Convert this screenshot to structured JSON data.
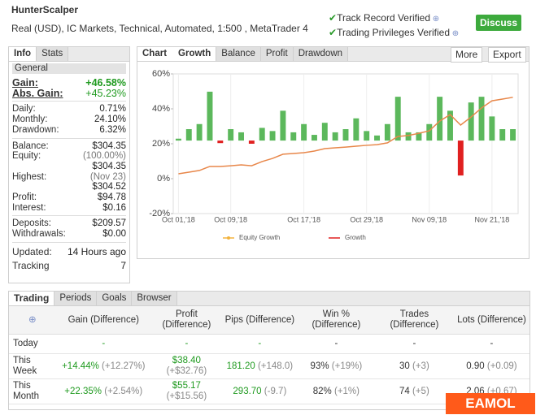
{
  "header": {
    "title": "HunterScalper",
    "subtitle": "Real (USD), IC Markets, Technical, Automated, 1:500 , MetaTrader 4",
    "badges": [
      "Track Record Verified",
      "Trading Privileges Verified"
    ],
    "button": "Discuss"
  },
  "info": {
    "tabs": [
      "Info",
      "Stats"
    ],
    "section": "General",
    "groups": [
      [
        {
          "label": "Gain:",
          "value": "+46.58%"
        },
        {
          "label": "Abs. Gain:",
          "value": "+45.23%"
        }
      ],
      [
        {
          "label": "Daily:",
          "value": "0.71%"
        },
        {
          "label": "Monthly:",
          "value": "24.10%"
        },
        {
          "label": "Drawdown:",
          "value": "6.32%"
        }
      ],
      [
        {
          "label": "Balance:",
          "value": "$304.35"
        },
        {
          "label": "Equity:",
          "note": "(100.00%)",
          "value": "$304.35"
        },
        {
          "label": "Highest:",
          "note": "(Nov 23)",
          "value": "$304.52"
        },
        {
          "label": "Profit:",
          "value": "$94.78"
        },
        {
          "label": "Interest:",
          "value": "$0.16"
        }
      ],
      [
        {
          "label": "Deposits:",
          "value": "$209.57"
        },
        {
          "label": "Withdrawals:",
          "value": "$0.00"
        }
      ]
    ],
    "footer": [
      {
        "label": "Updated:",
        "value": "14 Hours ago"
      },
      {
        "label": "Tracking",
        "value": "7"
      }
    ]
  },
  "chart_tabs": [
    "Chart",
    "Growth",
    "Balance",
    "Profit",
    "Drawdown"
  ],
  "chart_buttons": [
    "More",
    "Export"
  ],
  "chart_data": {
    "type": "combo",
    "categories": [
      "Oct 01,'18",
      null,
      null,
      null,
      null,
      "Oct 09,'18",
      null,
      null,
      null,
      null,
      null,
      null,
      "Oct 17,'18",
      null,
      null,
      null,
      null,
      null,
      "Oct 29,'18",
      null,
      null,
      null,
      null,
      null,
      "Nov 09,'18",
      null,
      null,
      null,
      null,
      null,
      "Nov 21,'18",
      null,
      null
    ],
    "ylim": [
      -20,
      60
    ],
    "yticks": [
      {
        "value": 60,
        "label": "60%"
      },
      {
        "value": 40,
        "label": "40%"
      },
      {
        "value": 20,
        "label": "20%"
      },
      {
        "value": 0,
        "label": "0%"
      },
      {
        "value": -20,
        "label": "-20%"
      }
    ],
    "y2lim": [
      -11.5,
      10.5
    ],
    "grid": true,
    "series": [
      {
        "name": "Growth",
        "type": "bar",
        "axis": "y2",
        "color": "#5cb85c",
        "negative_color": "#e02020",
        "values": [
          0.3,
          1.8,
          2.6,
          7.7,
          -0.4,
          1.8,
          1.3,
          -0.5,
          2.0,
          1.5,
          4.7,
          1.3,
          2.6,
          0.9,
          2.8,
          1.3,
          1.8,
          3.5,
          1.5,
          0.8,
          2.6,
          6.9,
          1.3,
          1.3,
          2.6,
          6.9,
          4.7,
          -5.5,
          6.0,
          6.9,
          3.8,
          1.8,
          1.8
        ]
      },
      {
        "name": "Equity Growth",
        "type": "line",
        "color": "#e8874a",
        "legend_color": "#f2b33d",
        "values": [
          2.8,
          3.7,
          4.7,
          7.0,
          7.0,
          7.4,
          7.9,
          7.4,
          9.8,
          11.6,
          14.0,
          14.4,
          14.9,
          15.8,
          17.2,
          17.7,
          18.1,
          18.6,
          19.1,
          19.5,
          20.5,
          24.2,
          24.7,
          26.0,
          27.4,
          33.0,
          36.7,
          30.7,
          35.3,
          40.5,
          44.6,
          45.6,
          46.6
        ]
      }
    ],
    "legend": [
      1,
      0
    ]
  },
  "periods": {
    "tabs": [
      "Trading",
      "Periods",
      "Goals",
      "Browser"
    ],
    "columns": [
      "Gain (Difference)",
      "Profit (Difference)",
      "Pips (Difference)",
      "Win % (Difference)",
      "Trades (Difference)",
      "Lots (Difference)"
    ],
    "rows": [
      {
        "label": "Today",
        "cells": [
          {
            "value": "-"
          },
          {
            "value": "-"
          },
          {
            "value": "-"
          },
          {
            "value": "-"
          },
          {
            "value": "-"
          },
          {
            "value": "-"
          }
        ]
      },
      {
        "label": "This Week",
        "cells": [
          {
            "value": "+14.44%",
            "diff": "(+12.27%)"
          },
          {
            "value": "$38.40",
            "diff": "(+$32.76)"
          },
          {
            "value": "181.20",
            "diff": "(+148.0)"
          },
          {
            "value": "93%",
            "diff": "(+19%)"
          },
          {
            "value": "30",
            "diff": "(+3)"
          },
          {
            "value": "0.90",
            "diff": "(+0.09)"
          }
        ]
      },
      {
        "label": "This Month",
        "cells": [
          {
            "value": "+22.35%",
            "diff": "(+2.54%)"
          },
          {
            "value": "$55.17",
            "diff": "(+$15.56)"
          },
          {
            "value": "293.70",
            "diff": "(-9.7)"
          },
          {
            "value": "82%",
            "diff": "(+1%)"
          },
          {
            "value": "74",
            "diff": "(+5)"
          },
          {
            "value": "2.06",
            "diff": "(+0.67)"
          }
        ]
      }
    ]
  },
  "watermark": "EAMOL"
}
